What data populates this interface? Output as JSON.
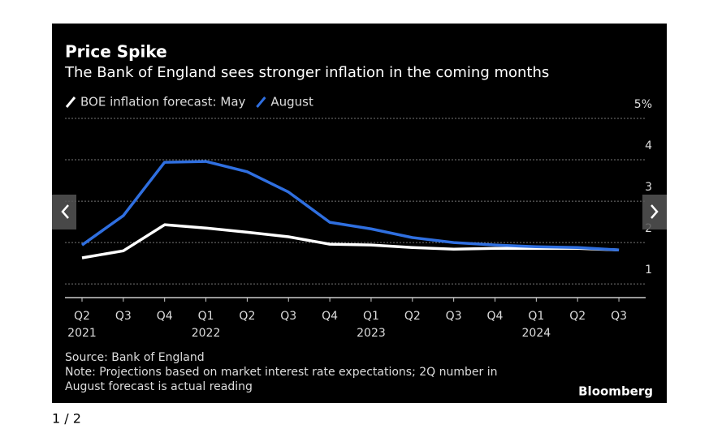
{
  "chart_data": {
    "type": "line",
    "title": "Price Spike",
    "subtitle": "The Bank of England sees stronger inflation in the coming months",
    "categories": [
      "Q2",
      "Q3",
      "Q4",
      "Q1",
      "Q2",
      "Q3",
      "Q4",
      "Q1",
      "Q2",
      "Q3",
      "Q4",
      "Q1",
      "Q2",
      "Q3"
    ],
    "year_labels": [
      "2021",
      null,
      null,
      "2022",
      null,
      null,
      null,
      "2023",
      null,
      null,
      null,
      "2024",
      null,
      null
    ],
    "series": [
      {
        "name": "BOE inflation forecast: May",
        "color": "#ffffff",
        "values": [
          1.63,
          1.8,
          2.43,
          2.35,
          2.25,
          2.14,
          1.96,
          1.94,
          1.88,
          1.84,
          1.86,
          1.86,
          1.86,
          1.82
        ]
      },
      {
        "name": "August",
        "color": "#2f6fe0",
        "values": [
          1.94,
          2.65,
          3.94,
          3.96,
          3.71,
          3.22,
          2.49,
          2.33,
          2.12,
          2.0,
          1.94,
          1.9,
          1.88,
          1.82
        ]
      }
    ],
    "ylim": [
      0.67,
      5
    ],
    "yticks": [
      1,
      2,
      3,
      4,
      {
        "value": 5,
        "label": "5%"
      }
    ],
    "grid": true,
    "source": "Source: Bank of England",
    "note": [
      "Note: Projections based on market interest rate expectations; 2Q number in",
      "August forecast is actual reading"
    ],
    "brand": "Bloomberg"
  },
  "carousel": {
    "counter": "1 / 2"
  }
}
